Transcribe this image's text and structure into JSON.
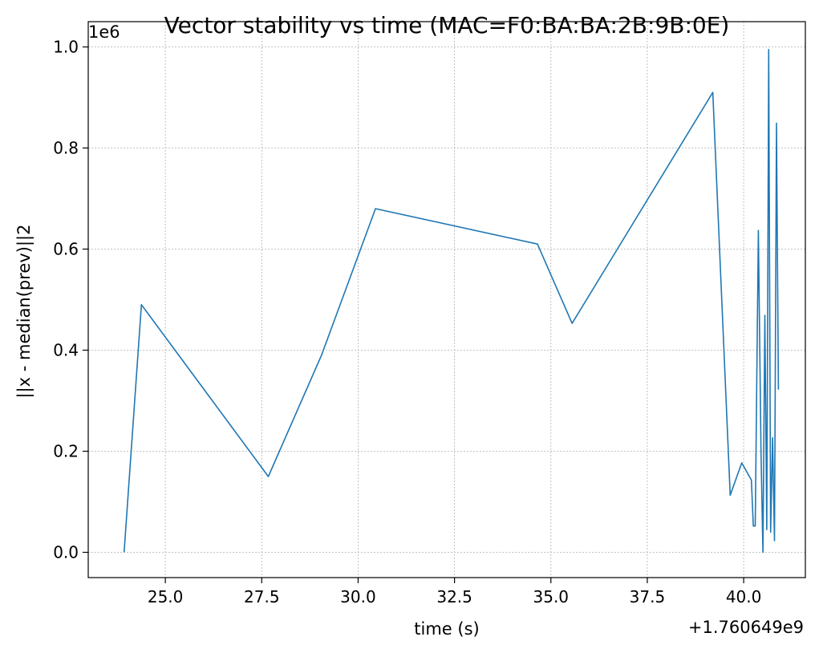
{
  "chart_data": {
    "type": "line",
    "title": "Vector stability vs time (MAC=F0:BA:BA:2B:9B:0E)",
    "xlabel": "time (s)",
    "ylabel": "||x - median(prev)||2",
    "x_offset_label": "+1.760649e9",
    "y_scale_label": "1e6",
    "xlim": [
      23.0,
      41.6
    ],
    "ylim": [
      -0.05,
      1.05
    ],
    "grid": true,
    "x_ticks": [
      25.0,
      27.5,
      30.0,
      32.5,
      35.0,
      37.5,
      40.0
    ],
    "x_tick_labels": [
      "25.0",
      "27.5",
      "30.0",
      "32.5",
      "35.0",
      "37.5",
      "40.0"
    ],
    "y_ticks": [
      0.0,
      0.2,
      0.4,
      0.6,
      0.8,
      1.0
    ],
    "y_tick_labels": [
      "0.0",
      "0.2",
      "0.4",
      "0.6",
      "0.8",
      "1.0"
    ],
    "series": [
      {
        "color": "#1f77b4",
        "x": [
          23.93,
          24.38,
          27.67,
          29.05,
          30.45,
          34.65,
          35.55,
          39.2,
          39.65,
          39.95,
          40.2,
          40.25,
          40.3,
          40.38,
          40.45,
          40.5,
          40.55,
          40.6,
          40.65,
          40.7,
          40.75,
          40.8,
          40.85,
          40.9
        ],
        "y": [
          0.0,
          0.49,
          0.15,
          0.39,
          0.68,
          0.61,
          0.453,
          0.91,
          0.113,
          0.177,
          0.143,
          0.052,
          0.052,
          0.637,
          0.2,
          0.0,
          0.469,
          0.045,
          0.995,
          0.04,
          0.227,
          0.023,
          0.849,
          0.322
        ]
      }
    ]
  }
}
